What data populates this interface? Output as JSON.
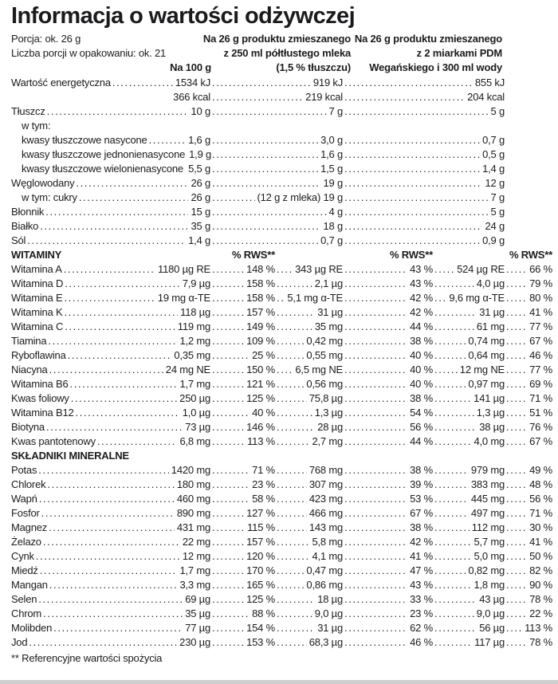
{
  "title": "Informacja o wartości odżywczej",
  "serving": {
    "portion": "Porcja: ok. 26 g",
    "per_pack": "Liczba porcji w opakowaniu: ok. 21"
  },
  "columns": {
    "per100g": "Na 100 g",
    "milk": [
      "Na 26 g produktu zmieszanego",
      "z 250 ml półtłustego mleka",
      "(1,5 % tłuszczu)"
    ],
    "vegan": [
      "Na 26 g produktu zmieszanego",
      "z 2 miarkami PDM",
      "Wegańskiego i 300 ml wody"
    ]
  },
  "rws_label": "% RWS**",
  "footnote": "** Referencyjne wartości spożycia",
  "text_color": "#1b1b1f",
  "rows": [
    {
      "type": "macro",
      "label": "Wartość energetyczna",
      "v1": "1534 kJ",
      "v2": "919 kJ",
      "v3": "855 kJ"
    },
    {
      "type": "macro",
      "label": "",
      "v1": "366 kcal",
      "v2": "219 kcal",
      "v3": "204 kcal"
    },
    {
      "type": "macro",
      "label": "Tłuszcz",
      "v1": "10 g",
      "v2": "7 g",
      "v3": "5 g"
    },
    {
      "type": "plain",
      "label": "w tym:",
      "indent": 1
    },
    {
      "type": "macro",
      "label": "kwasy tłuszczowe nasycone",
      "indent": 1,
      "v1": "1,6 g",
      "v2": "3,0 g",
      "v3": "0,7 g"
    },
    {
      "type": "macro",
      "label": "kwasy tłuszczowe jednonienasycone",
      "indent": 1,
      "v1": "1,9 g",
      "v2": "1,6 g",
      "v3": "0,5 g"
    },
    {
      "type": "macro",
      "label": "kwasy tłuszczowe wielonienasycone",
      "indent": 1,
      "v1": "5,5 g",
      "v2": "1,5 g",
      "v3": "1,4 g"
    },
    {
      "type": "macro",
      "label": "Węglowodany",
      "v1": "26 g",
      "v2": "19 g",
      "v3": "12 g"
    },
    {
      "type": "macro",
      "label": "w tym: cukry",
      "indent": 1,
      "v1": "26 g",
      "v2": "(12 g z mleka) 19 g",
      "v3": "7 g"
    },
    {
      "type": "macro",
      "label": "Błonnik",
      "v1": "15 g",
      "v2": "4 g",
      "v3": "5 g"
    },
    {
      "type": "macro",
      "label": "Białko",
      "v1": "35 g",
      "v2": "18 g",
      "v3": "24 g"
    },
    {
      "type": "macro",
      "label": "Sól",
      "v1": "1,4 g",
      "v2": "0,7 g",
      "v3": "0,9 g"
    },
    {
      "type": "section3",
      "label": "WITAMINY"
    },
    {
      "type": "vit",
      "label": "Witamina A",
      "v1": "1180 µg RE",
      "r1": "148 %",
      "v2": "343 µg RE",
      "r2": "43 %",
      "v3": "524 µg RE",
      "r3": "66 %"
    },
    {
      "type": "vit",
      "label": "Witamina D",
      "v1": "7,9 µg",
      "r1": "158 %",
      "v2": "2,1 µg",
      "r2": "43 %",
      "v3": "4,0 µg",
      "r3": "79 %"
    },
    {
      "type": "vit",
      "label": "Witamina E",
      "v1": "19 mg α-TE",
      "r1": "158 %",
      "v2": "5,1 mg α-TE",
      "r2": "42 %",
      "v3": "9,6 mg α-TE",
      "r3": "80 %"
    },
    {
      "type": "vit",
      "label": "Witamina K",
      "v1": "118 µg",
      "r1": "157 %",
      "v2": "31 µg",
      "r2": "42 %",
      "v3": "31 µg",
      "r3": "41 %"
    },
    {
      "type": "vit",
      "label": "Witamina C",
      "v1": "119 mg",
      "r1": "149 %",
      "v2": "35 mg",
      "r2": "44 %",
      "v3": "61 mg",
      "r3": "77 %"
    },
    {
      "type": "vit",
      "label": "Tiamina",
      "v1": "1,2 mg",
      "r1": "109 %",
      "v2": "0,42 mg",
      "r2": "38 %",
      "v3": "0,74 mg",
      "r3": "67 %"
    },
    {
      "type": "vit",
      "label": "Ryboflawina",
      "v1": "0,35 mg",
      "r1": "25 %",
      "v2": "0,55 mg",
      "r2": "40 %",
      "v3": "0,64 mg",
      "r3": "46 %"
    },
    {
      "type": "vit",
      "label": "Niacyna",
      "v1": "24 mg NE",
      "r1": "150 %",
      "v2": "6,5 mg NE",
      "r2": "40 %",
      "v3": "12 mg NE",
      "r3": "77 %"
    },
    {
      "type": "vit",
      "label": "Witamina B6",
      "v1": "1,7 mg",
      "r1": "121 %",
      "v2": "0,56 mg",
      "r2": "40 %",
      "v3": "0,97 mg",
      "r3": "69 %"
    },
    {
      "type": "vit",
      "label": "Kwas foliowy",
      "v1": "250 µg",
      "r1": "125 %",
      "v2": "75,8 µg",
      "r2": "38 %",
      "v3": "141 µg",
      "r3": "71 %"
    },
    {
      "type": "vit",
      "label": "Witamina B12",
      "v1": "1,0 µg",
      "r1": "40 %",
      "v2": "1,3 µg",
      "r2": "54 %",
      "v3": "1,3 µg",
      "r3": "51 %"
    },
    {
      "type": "vit",
      "label": "Biotyna",
      "v1": "73 µg",
      "r1": "146 %",
      "v2": "28 µg",
      "r2": "56 %",
      "v3": "38 µg",
      "r3": "76 %"
    },
    {
      "type": "vit",
      "label": "Kwas pantotenowy",
      "v1": "6,8 mg",
      "r1": "113 %",
      "v2": "2,7 mg",
      "r2": "44 %",
      "v3": "4,0 mg",
      "r3": "67 %"
    },
    {
      "type": "section",
      "label": "SKŁADNIKI MINERALNE"
    },
    {
      "type": "vit",
      "label": "Potas",
      "v1": "1420 mg",
      "r1": "71 %",
      "v2": "768 mg",
      "r2": "38 %",
      "v3": "979 mg",
      "r3": "49 %"
    },
    {
      "type": "vit",
      "label": "Chlorek",
      "v1": "180 mg",
      "r1": "23 %",
      "v2": "307 mg",
      "r2": "39 %",
      "v3": "383 mg",
      "r3": "48 %"
    },
    {
      "type": "vit",
      "label": "Wapń",
      "v1": "460 mg",
      "r1": "58 %",
      "v2": "423 mg",
      "r2": "53 %",
      "v3": "445 mg",
      "r3": "56 %"
    },
    {
      "type": "vit",
      "label": "Fosfor",
      "v1": "890 mg",
      "r1": "127 %",
      "v2": "466 mg",
      "r2": "67 %",
      "v3": "497 mg",
      "r3": "71 %"
    },
    {
      "type": "vit",
      "label": "Magnez",
      "v1": "431 mg",
      "r1": "115 %",
      "v2": "143 mg",
      "r2": "38 %",
      "v3": "112 mg",
      "r3": "30 %"
    },
    {
      "type": "vit",
      "label": "Żelazo",
      "v1": "22 mg",
      "r1": "157 %",
      "v2": "5,8 mg",
      "r2": "42 %",
      "v3": "5,7 mg",
      "r3": "41 %"
    },
    {
      "type": "vit",
      "label": "Cynk",
      "v1": "12 mg",
      "r1": "120 %",
      "v2": "4,1 mg",
      "r2": "41 %",
      "v3": "5,0 mg",
      "r3": "50 %"
    },
    {
      "type": "vit",
      "label": "Miedź",
      "v1": "1,7 mg",
      "r1": "170 %",
      "v2": "0,47 mg",
      "r2": "47 %",
      "v3": "0,82 mg",
      "r3": "82 %"
    },
    {
      "type": "vit",
      "label": "Mangan",
      "v1": "3,3 mg",
      "r1": "165 %",
      "v2": "0,86 mg",
      "r2": "43 %",
      "v3": "1,8 mg",
      "r3": "90 %"
    },
    {
      "type": "vit",
      "label": "Selen",
      "v1": "69 µg",
      "r1": "125 %",
      "v2": "18 µg",
      "r2": "33 %",
      "v3": "43 µg",
      "r3": "78 %"
    },
    {
      "type": "vit",
      "label": "Chrom",
      "v1": "35 µg",
      "r1": "88 %",
      "v2": "9,0 µg",
      "r2": "23 %",
      "v3": "9,0 µg",
      "r3": "22 %"
    },
    {
      "type": "vit",
      "label": "Molibden",
      "v1": "77 µg",
      "r1": "154 %",
      "v2": "31 µg",
      "r2": "62 %",
      "v3": "56 µg",
      "r3": "113 %"
    },
    {
      "type": "vit",
      "label": "Jod",
      "v1": "230 µg",
      "r1": "153 %",
      "v2": "68,3 µg",
      "r2": "46 %",
      "v3": "117 µg",
      "r3": "78 %"
    }
  ]
}
